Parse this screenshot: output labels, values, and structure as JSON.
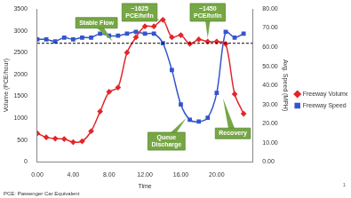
{
  "chart_data": {
    "type": "line",
    "x": [
      0,
      1,
      2,
      3,
      4,
      5,
      6,
      7,
      8,
      9,
      10,
      11,
      12,
      13,
      14,
      15,
      16,
      17,
      18,
      19,
      20,
      21,
      22,
      23
    ],
    "series": [
      {
        "name": "Freeway Volume",
        "color": "#e3262b",
        "marker": "diamond",
        "values": [
          650,
          560,
          530,
          520,
          450,
          470,
          700,
          1150,
          1600,
          1700,
          2500,
          2850,
          3100,
          3100,
          3250,
          2850,
          2900,
          2700,
          2800,
          2750,
          2750,
          2700,
          1550,
          1100
        ]
      },
      {
        "name": "Freeway Speed",
        "color": "#3355cc",
        "marker": "square",
        "axis": "y2",
        "values": [
          64,
          64,
          63,
          65,
          64,
          65,
          65,
          67,
          66,
          66,
          67,
          68,
          67,
          67,
          62,
          48,
          30,
          22,
          21,
          23,
          36,
          68,
          65,
          67
        ]
      }
    ],
    "xlabel": "Time",
    "ylabel": "Volume (PCE/hour)",
    "y2label": "Avg. Speed (MPH)",
    "xlim": [
      0,
      24
    ],
    "xticks": [
      {
        "value": 0,
        "label": "0.00"
      },
      {
        "value": 4,
        "label": "4.00"
      },
      {
        "value": 8,
        "label": "8.00"
      },
      {
        "value": 12,
        "label": "12.00"
      },
      {
        "value": 16,
        "label": "16.00"
      },
      {
        "value": 20,
        "label": "20.00"
      }
    ],
    "ylim": [
      0,
      3500
    ],
    "yticks": [
      0,
      500,
      1000,
      1500,
      2000,
      2500,
      3000,
      3500
    ],
    "y2lim": [
      0,
      80
    ],
    "y2ticks": [
      {
        "value": 0,
        "label": "0.00"
      },
      {
        "value": 10,
        "label": "10.00"
      },
      {
        "value": 20,
        "label": "20.00"
      },
      {
        "value": 30,
        "label": "30.00"
      },
      {
        "value": 40,
        "label": "40.00"
      },
      {
        "value": 50,
        "label": "50.00"
      },
      {
        "value": 60,
        "label": "60.00"
      },
      {
        "value": 70,
        "label": "70.00"
      },
      {
        "value": 80,
        "label": "80.00"
      }
    ],
    "grid": false,
    "legend": "right",
    "reference_line": {
      "value": 62,
      "axis": "y2",
      "line_style": "dashed",
      "color": "#000000"
    },
    "annotations": [
      "Stable Flow",
      "~1625\nPCE/hr/ln",
      "~1450\nPCE/hr/ln",
      "Queue\nDischarge",
      "Recovery"
    ],
    "footnote": "PCE: Passenger Car Equivalent",
    "page_number": "1"
  }
}
